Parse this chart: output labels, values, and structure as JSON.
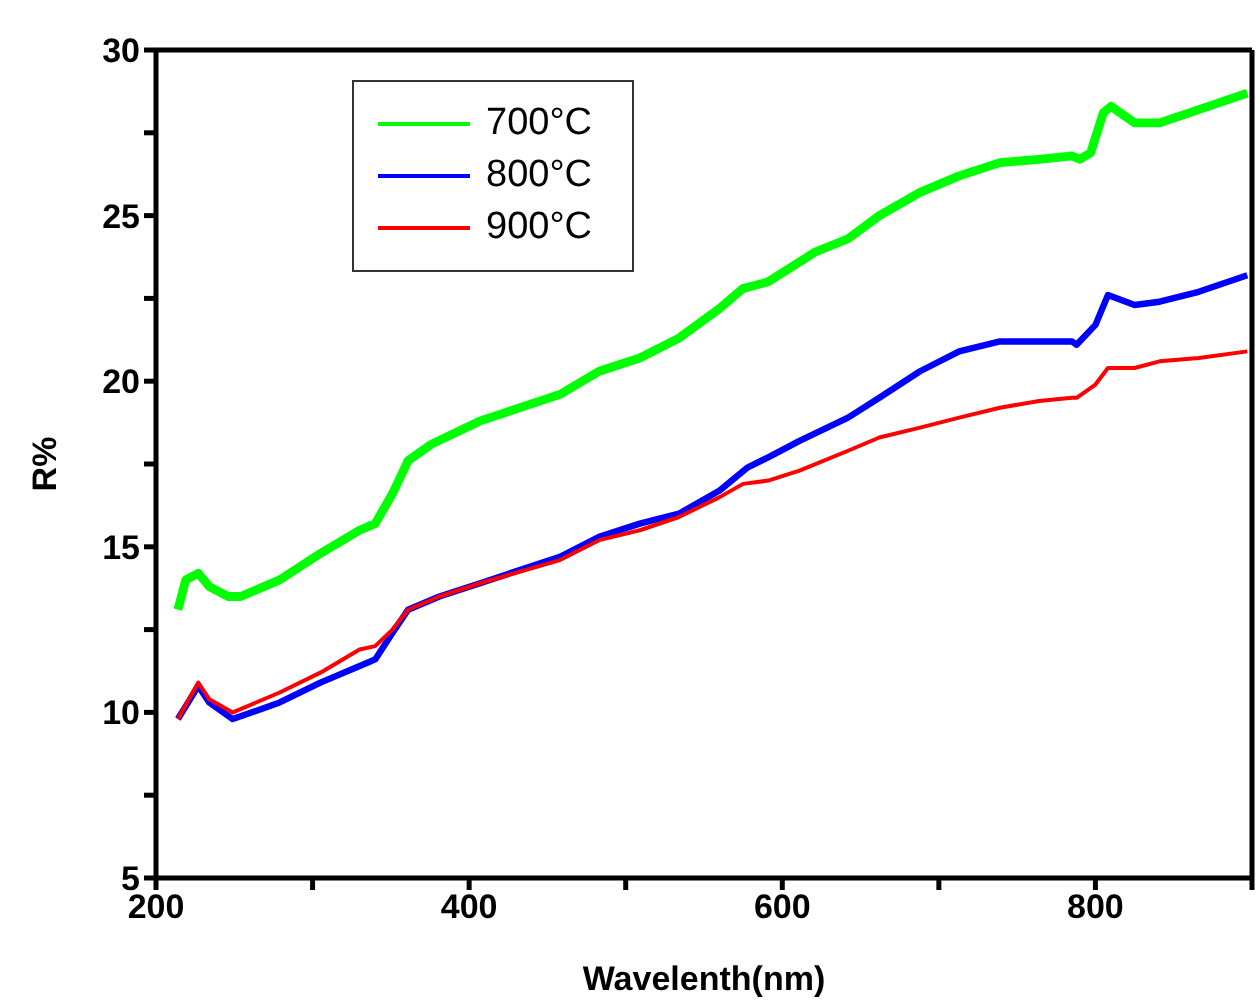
{
  "chart_data": {
    "type": "line",
    "xlabel": "Wavelenth(nm)",
    "ylabel": "R%",
    "xlim": [
      200,
      900
    ],
    "ylim": [
      5,
      30
    ],
    "xticks": [
      200,
      {
        "value": 300,
        "label": null
      },
      400,
      {
        "value": 500,
        "label": null
      },
      600,
      {
        "value": 700,
        "label": null
      },
      800,
      {
        "value": 900,
        "label": null
      }
    ],
    "yticks": [
      5,
      {
        "value": 7.5,
        "label": null
      },
      10,
      {
        "value": 12.5,
        "label": null
      },
      15,
      {
        "value": 17.5,
        "label": null
      },
      20,
      {
        "value": 22.5,
        "label": null
      },
      25,
      {
        "value": 27.5,
        "label": null
      },
      30
    ],
    "grid": false,
    "legend": "top left",
    "marker": "none",
    "line_style": "solid",
    "series": [
      {
        "name": "700°C",
        "color": "#00ff00",
        "x": [
          214,
          219,
          227,
          234,
          246,
          254,
          279,
          305,
          330,
          340,
          351,
          361,
          376,
          407,
          458,
          483,
          509,
          534,
          560,
          575,
          591,
          611,
          621,
          642,
          662,
          688,
          713,
          739,
          764,
          785,
          790,
          797,
          805,
          810,
          825,
          841,
          866,
          897
        ],
        "values": [
          13.1,
          14.0,
          14.2,
          13.8,
          13.5,
          13.5,
          14.0,
          14.8,
          15.5,
          15.7,
          16.6,
          17.6,
          18.1,
          18.8,
          19.6,
          20.3,
          20.7,
          21.3,
          22.2,
          22.8,
          23.0,
          23.6,
          23.9,
          24.3,
          25.0,
          25.7,
          26.2,
          26.6,
          26.7,
          26.8,
          26.7,
          26.9,
          28.1,
          28.3,
          27.8,
          27.8,
          28.2,
          28.7
        ]
      },
      {
        "name": "800°C",
        "color": "#0000ff",
        "x": [
          214,
          227,
          234,
          249,
          279,
          305,
          335,
          340,
          351,
          361,
          381,
          407,
          458,
          483,
          509,
          534,
          560,
          578,
          591,
          611,
          642,
          662,
          688,
          713,
          739,
          764,
          785,
          788,
          800,
          808,
          825,
          841,
          866,
          897
        ],
        "values": [
          9.8,
          10.8,
          10.3,
          9.8,
          10.3,
          10.9,
          11.5,
          11.6,
          12.4,
          13.1,
          13.5,
          13.9,
          14.7,
          15.3,
          15.7,
          16.0,
          16.7,
          17.4,
          17.7,
          18.2,
          18.9,
          19.5,
          20.3,
          20.9,
          21.2,
          21.2,
          21.2,
          21.1,
          21.7,
          22.6,
          22.3,
          22.4,
          22.7,
          23.2
        ]
      },
      {
        "name": "900°C",
        "color": "#ff0000",
        "x": [
          214,
          227,
          234,
          249,
          279,
          305,
          330,
          340,
          351,
          361,
          381,
          407,
          458,
          483,
          509,
          534,
          560,
          575,
          591,
          611,
          642,
          662,
          688,
          713,
          739,
          764,
          785,
          788,
          800,
          808,
          825,
          841,
          866,
          897
        ],
        "values": [
          9.8,
          10.9,
          10.4,
          10.0,
          10.6,
          11.2,
          11.9,
          12.0,
          12.5,
          13.1,
          13.5,
          13.9,
          14.6,
          15.2,
          15.5,
          15.9,
          16.5,
          16.9,
          17.0,
          17.3,
          17.9,
          18.3,
          18.6,
          18.9,
          19.2,
          19.4,
          19.5,
          19.5,
          19.9,
          20.4,
          20.4,
          20.6,
          20.7,
          20.9
        ]
      }
    ]
  }
}
